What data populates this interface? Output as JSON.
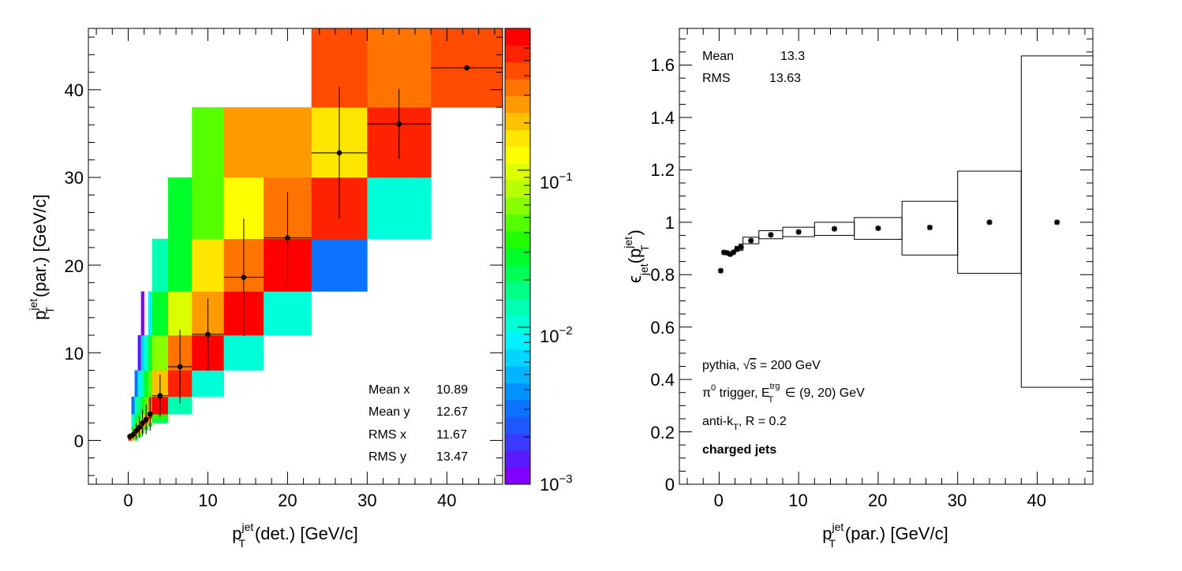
{
  "chart_data": [
    {
      "type": "heatmap",
      "title": "",
      "xlabel": {
        "base": "p",
        "sup": "jet",
        "sub": "T",
        "rest": "(det.) [GeV/c]"
      },
      "ylabel": {
        "base": "p",
        "sup": "jet",
        "sub": "T",
        "rest": "(par.) [GeV/c]"
      },
      "xlim": [
        -5,
        47
      ],
      "ylim": [
        -5,
        47
      ],
      "x_ticks": [
        "0",
        "10",
        "20",
        "30",
        "40"
      ],
      "y_ticks": [
        "0",
        "10",
        "20",
        "30",
        "40"
      ],
      "z_scale": "log",
      "zlim": [
        0.001,
        0.8
      ],
      "z_ticks": [
        {
          "base": "10",
          "exp": "−3"
        },
        {
          "base": "10",
          "exp": "−2"
        },
        {
          "base": "10",
          "exp": "−1"
        }
      ],
      "palette": [
        "#7f00ff",
        "#5a1cff",
        "#3a3aff",
        "#1f57ff",
        "#0c73ff",
        "#0092ff",
        "#00b4ff",
        "#00d6ff",
        "#00f2ff",
        "#00ffd8",
        "#00ffb0",
        "#00ff84",
        "#00ff55",
        "#00ff2a",
        "#22ff00",
        "#55ff00",
        "#88ff00",
        "#b8ff00",
        "#dcff00",
        "#ffff00",
        "#ffe600",
        "#ffc000",
        "#ff9a00",
        "#ff7400",
        "#ff4c00",
        "#ff2200",
        "#ff0000"
      ],
      "x_edges": [
        0,
        0.4,
        0.8,
        1.2,
        1.6,
        2.0,
        2.5,
        3.0,
        5.0,
        8.0,
        12.0,
        17.0,
        23.0,
        30.0,
        38.0,
        47.0
      ],
      "y_edges": [
        0,
        0.4,
        0.8,
        1.2,
        1.6,
        2.0,
        2.5,
        3.0,
        5.0,
        8.0,
        12.0,
        17.0,
        23.0,
        30.0,
        38.0,
        47.0
      ],
      "cells": [
        {
          "ix": 0,
          "iy": 0,
          "z": 0.7
        },
        {
          "ix": 0,
          "iy": 1,
          "z": 0.15
        },
        {
          "ix": 1,
          "iy": 0,
          "z": 0.2
        },
        {
          "ix": 1,
          "iy": 1,
          "z": 0.6
        },
        {
          "ix": 1,
          "iy": 2,
          "z": 0.1
        },
        {
          "ix": 1,
          "iy": 3,
          "z": 0.03
        },
        {
          "ix": 1,
          "iy": 4,
          "z": 0.01
        },
        {
          "ix": 1,
          "iy": 5,
          "z": 0.01
        },
        {
          "ix": 1,
          "iy": 6,
          "z": 0.01
        },
        {
          "ix": 1,
          "iy": 7,
          "z": 0.003
        },
        {
          "ix": 2,
          "iy": 0,
          "z": 0.02
        },
        {
          "ix": 2,
          "iy": 1,
          "z": 0.2
        },
        {
          "ix": 2,
          "iy": 2,
          "z": 0.6
        },
        {
          "ix": 2,
          "iy": 3,
          "z": 0.15
        },
        {
          "ix": 2,
          "iy": 4,
          "z": 0.05
        },
        {
          "ix": 2,
          "iy": 5,
          "z": 0.025
        },
        {
          "ix": 2,
          "iy": 6,
          "z": 0.02
        },
        {
          "ix": 2,
          "iy": 7,
          "z": 0.012
        },
        {
          "ix": 2,
          "iy": 8,
          "z": 0.003
        },
        {
          "ix": 3,
          "iy": 1,
          "z": 0.04
        },
        {
          "ix": 3,
          "iy": 2,
          "z": 0.2
        },
        {
          "ix": 3,
          "iy": 3,
          "z": 0.6
        },
        {
          "ix": 3,
          "iy": 4,
          "z": 0.2
        },
        {
          "ix": 3,
          "iy": 5,
          "z": 0.06
        },
        {
          "ix": 3,
          "iy": 6,
          "z": 0.03
        },
        {
          "ix": 3,
          "iy": 7,
          "z": 0.018
        },
        {
          "ix": 3,
          "iy": 8,
          "z": 0.008
        },
        {
          "ix": 3,
          "iy": 9,
          "z": 0.0015
        },
        {
          "ix": 4,
          "iy": 2,
          "z": 0.04
        },
        {
          "ix": 4,
          "iy": 3,
          "z": 0.25
        },
        {
          "ix": 4,
          "iy": 4,
          "z": 0.6
        },
        {
          "ix": 4,
          "iy": 5,
          "z": 0.2
        },
        {
          "ix": 4,
          "iy": 6,
          "z": 0.08
        },
        {
          "ix": 4,
          "iy": 7,
          "z": 0.025
        },
        {
          "ix": 4,
          "iy": 8,
          "z": 0.015
        },
        {
          "ix": 4,
          "iy": 9,
          "z": 0.006
        },
        {
          "ix": 4,
          "iy": 10,
          "z": 0.0012
        },
        {
          "ix": 5,
          "iy": 3,
          "z": 0.03
        },
        {
          "ix": 5,
          "iy": 4,
          "z": 0.2
        },
        {
          "ix": 5,
          "iy": 5,
          "z": 0.6
        },
        {
          "ix": 5,
          "iy": 6,
          "z": 0.25
        },
        {
          "ix": 5,
          "iy": 7,
          "z": 0.05
        },
        {
          "ix": 5,
          "iy": 8,
          "z": 0.025
        },
        {
          "ix": 5,
          "iy": 9,
          "z": 0.01
        },
        {
          "ix": 6,
          "iy": 4,
          "z": 0.03
        },
        {
          "ix": 6,
          "iy": 5,
          "z": 0.2
        },
        {
          "ix": 6,
          "iy": 6,
          "z": 0.6
        },
        {
          "ix": 6,
          "iy": 7,
          "z": 0.3
        },
        {
          "ix": 6,
          "iy": 8,
          "z": 0.05
        },
        {
          "ix": 6,
          "iy": 9,
          "z": 0.025
        },
        {
          "ix": 6,
          "iy": 10,
          "z": 0.008
        },
        {
          "ix": 7,
          "iy": 5,
          "z": 0.02
        },
        {
          "ix": 7,
          "iy": 6,
          "z": 0.04
        },
        {
          "ix": 7,
          "iy": 7,
          "z": 0.7
        },
        {
          "ix": 7,
          "iy": 8,
          "z": 0.2
        },
        {
          "ix": 7,
          "iy": 9,
          "z": 0.06
        },
        {
          "ix": 7,
          "iy": 10,
          "z": 0.03
        },
        {
          "ix": 7,
          "iy": 11,
          "z": 0.015
        },
        {
          "ix": 8,
          "iy": 7,
          "z": 0.015
        },
        {
          "ix": 8,
          "iy": 8,
          "z": 0.6
        },
        {
          "ix": 8,
          "iy": 9,
          "z": 0.3
        },
        {
          "ix": 8,
          "iy": 10,
          "z": 0.09
        },
        {
          "ix": 8,
          "iy": 11,
          "z": 0.03
        },
        {
          "ix": 8,
          "iy": 12,
          "z": 0.025
        },
        {
          "ix": 9,
          "iy": 8,
          "z": 0.01
        },
        {
          "ix": 9,
          "iy": 9,
          "z": 0.7
        },
        {
          "ix": 9,
          "iy": 10,
          "z": 0.25
        },
        {
          "ix": 9,
          "iy": 11,
          "z": 0.15
        },
        {
          "ix": 9,
          "iy": 12,
          "z": 0.05
        },
        {
          "ix": 9,
          "iy": 13,
          "z": 0.05
        },
        {
          "ix": 10,
          "iy": 9,
          "z": 0.01
        },
        {
          "ix": 10,
          "iy": 10,
          "z": 0.7
        },
        {
          "ix": 10,
          "iy": 11,
          "z": 0.35
        },
        {
          "ix": 10,
          "iy": 12,
          "z": 0.12
        },
        {
          "ix": 10,
          "iy": 13,
          "z": 0.25
        },
        {
          "ix": 11,
          "iy": 10,
          "z": 0.01
        },
        {
          "ix": 11,
          "iy": 11,
          "z": 0.7
        },
        {
          "ix": 11,
          "iy": 12,
          "z": 0.35
        },
        {
          "ix": 11,
          "iy": 13,
          "z": 0.25
        },
        {
          "ix": 12,
          "iy": 11,
          "z": 0.003
        },
        {
          "ix": 12,
          "iy": 12,
          "z": 0.6
        },
        {
          "ix": 12,
          "iy": 13,
          "z": 0.15
        },
        {
          "ix": 12,
          "iy": 14,
          "z": 0.45
        },
        {
          "ix": 13,
          "iy": 12,
          "z": 0.01
        },
        {
          "ix": 13,
          "iy": 13,
          "z": 0.6
        },
        {
          "ix": 13,
          "iy": 14,
          "z": 0.3
        },
        {
          "ix": 14,
          "iy": 14,
          "z": 0.45
        }
      ],
      "profile": [
        {
          "x": 0.2,
          "y": 0.45,
          "ex": 0.2,
          "ey": 0.2
        },
        {
          "x": 0.6,
          "y": 0.65,
          "ex": 0.2,
          "ey": 0.5
        },
        {
          "x": 1.0,
          "y": 1.1,
          "ex": 0.2,
          "ey": 0.9
        },
        {
          "x": 1.4,
          "y": 1.5,
          "ex": 0.2,
          "ey": 1.2
        },
        {
          "x": 1.8,
          "y": 2.0,
          "ex": 0.2,
          "ey": 1.5
        },
        {
          "x": 2.25,
          "y": 2.4,
          "ex": 0.25,
          "ey": 1.7
        },
        {
          "x": 2.75,
          "y": 3.0,
          "ex": 0.25,
          "ey": 1.9
        },
        {
          "x": 4.0,
          "y": 5.1,
          "ex": 1.0,
          "ey": 2.4
        },
        {
          "x": 6.5,
          "y": 8.4,
          "ex": 1.5,
          "ey": 4.2
        },
        {
          "x": 10.0,
          "y": 12.1,
          "ex": 2.0,
          "ey": 4.1
        },
        {
          "x": 14.5,
          "y": 18.6,
          "ex": 2.5,
          "ey": 6.7
        },
        {
          "x": 20.0,
          "y": 23.1,
          "ex": 3.0,
          "ey": 5.2
        },
        {
          "x": 26.5,
          "y": 32.8,
          "ex": 3.5,
          "ey": 7.5
        },
        {
          "x": 34.0,
          "y": 36.1,
          "ex": 4.0,
          "ey": 4.0
        },
        {
          "x": 42.5,
          "y": 42.5,
          "ex": 4.5,
          "ey": 0.05
        }
      ],
      "stats": [
        {
          "label": "Mean x",
          "value": "10.89"
        },
        {
          "label": "Mean y",
          "value": "12.67"
        },
        {
          "label": "RMS x",
          "value": "11.67"
        },
        {
          "label": "RMS y",
          "value": "13.47"
        }
      ]
    },
    {
      "type": "scatter",
      "title": "",
      "xlabel": {
        "base": "p",
        "sup": "jet",
        "sub": "T",
        "rest": "(par.) [GeV/c]"
      },
      "ylabel": {
        "base": "ϵ",
        "sub": "jet",
        "rest_open": "(p",
        "sup2": "jet",
        "sub2": "T",
        "rest_close": ")"
      },
      "xlim": [
        -5,
        47
      ],
      "ylim": [
        0,
        1.74
      ],
      "x_ticks": [
        "0",
        "10",
        "20",
        "30",
        "40"
      ],
      "y_ticks": [
        "0",
        "0.2",
        "0.4",
        "0.6",
        "0.8",
        "1",
        "1.2",
        "1.4",
        "1.6"
      ],
      "points": [
        {
          "x": 0.2,
          "y": 0.815,
          "ex": 0.2,
          "lo": 0.815,
          "hi": 0.815
        },
        {
          "x": 0.6,
          "y": 0.885,
          "ex": 0.2,
          "lo": 0.88,
          "hi": 0.89
        },
        {
          "x": 1.0,
          "y": 0.883,
          "ex": 0.2,
          "lo": 0.877,
          "hi": 0.889
        },
        {
          "x": 1.4,
          "y": 0.878,
          "ex": 0.2,
          "lo": 0.872,
          "hi": 0.885
        },
        {
          "x": 1.8,
          "y": 0.885,
          "ex": 0.2,
          "lo": 0.879,
          "hi": 0.892
        },
        {
          "x": 2.25,
          "y": 0.898,
          "ex": 0.25,
          "lo": 0.889,
          "hi": 0.908
        },
        {
          "x": 2.75,
          "y": 0.905,
          "ex": 0.25,
          "lo": 0.893,
          "hi": 0.917
        },
        {
          "x": 4.0,
          "y": 0.93,
          "ex": 1.0,
          "lo": 0.918,
          "hi": 0.943
        },
        {
          "x": 6.5,
          "y": 0.952,
          "ex": 1.5,
          "lo": 0.937,
          "hi": 0.968
        },
        {
          "x": 10.0,
          "y": 0.963,
          "ex": 2.0,
          "lo": 0.945,
          "hi": 0.981
        },
        {
          "x": 14.5,
          "y": 0.975,
          "ex": 2.5,
          "lo": 0.95,
          "hi": 1.0
        },
        {
          "x": 20.0,
          "y": 0.977,
          "ex": 3.0,
          "lo": 0.935,
          "hi": 1.018
        },
        {
          "x": 26.5,
          "y": 0.98,
          "ex": 3.5,
          "lo": 0.875,
          "hi": 1.08
        },
        {
          "x": 34.0,
          "y": 1.0,
          "ex": 4.0,
          "lo": 0.805,
          "hi": 1.195
        },
        {
          "x": 42.5,
          "y": 1.0,
          "ex": 4.5,
          "lo": 0.37,
          "hi": 1.635
        }
      ],
      "stats": [
        {
          "label": "Mean",
          "value": "13.3"
        },
        {
          "label": "RMS",
          "value": "13.63"
        }
      ],
      "annotations": {
        "line1": {
          "text": "pythia, ",
          "root": "√",
          "s": "s",
          "rest": " = 200 GeV"
        },
        "line2": {
          "pi": "π",
          "pi_sup": "0",
          "mid": " trigger, E",
          "e_sup": "trg",
          "e_sub": "T",
          "rest": " ∈ (9, 20) GeV"
        },
        "line3": {
          "base": "anti-k",
          "sub": "T",
          "rest": ", R = 0.2"
        },
        "line4": "charged jets"
      }
    }
  ]
}
